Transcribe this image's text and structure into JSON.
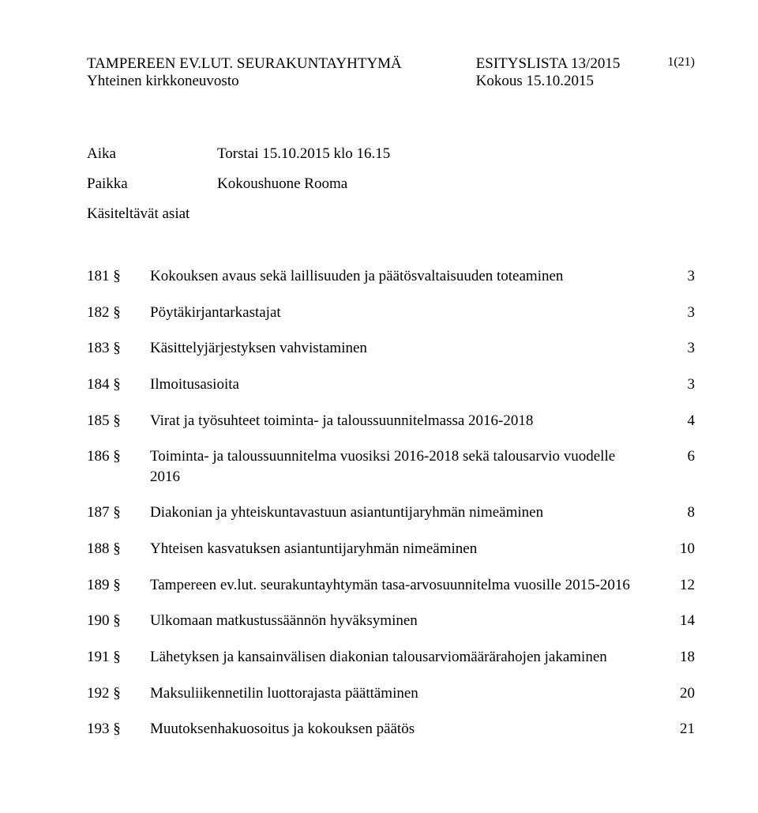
{
  "header": {
    "org_line1": "TAMPEREEN EV.LUT. SEURAKUNTAYHTYMÄ",
    "org_line2": "Yhteinen kirkkoneuvosto",
    "doc_type": "ESITYSLISTA 13/2015",
    "meeting": "Kokous 15.10.2015",
    "page_num": "1(21)"
  },
  "meta": {
    "time_label": "Aika",
    "time_value": "Torstai 15.10.2015 klo 16.15",
    "place_label": "Paikka",
    "place_value": "Kokoushuone Rooma",
    "subject_heading": "Käsiteltävät asiat"
  },
  "toc": [
    {
      "section": "181 §",
      "title": "Kokouksen avaus sekä laillisuuden ja päätösvaltaisuuden toteaminen",
      "page": "3"
    },
    {
      "section": "182 §",
      "title": "Pöytäkirjantarkastajat",
      "page": "3"
    },
    {
      "section": "183 §",
      "title": "Käsittelyjärjestyksen vahvistaminen",
      "page": "3"
    },
    {
      "section": "184 §",
      "title": "Ilmoitusasioita",
      "page": "3"
    },
    {
      "section": "185 §",
      "title": "Virat ja työsuhteet toiminta- ja taloussuunnitelmassa 2016-2018",
      "page": "4"
    },
    {
      "section": "186 §",
      "title": "Toiminta- ja taloussuunnitelma vuosiksi 2016-2018 sekä talousarvio vuodelle 2016",
      "page": "6"
    },
    {
      "section": "187 §",
      "title": "Diakonian ja yhteiskuntavastuun asiantuntijaryhmän nimeäminen",
      "page": "8"
    },
    {
      "section": "188 §",
      "title": "Yhteisen kasvatuksen asiantuntijaryhmän nimeäminen",
      "page": "10"
    },
    {
      "section": "189 §",
      "title": "Tampereen ev.lut. seurakuntayhtymän tasa-arvosuunnitelma vuosille 2015-2016",
      "page": "12"
    },
    {
      "section": "190 §",
      "title": "Ulkomaan matkustussäännön hyväksyminen",
      "page": "14"
    },
    {
      "section": "191 §",
      "title": "Lähetyksen ja kansainvälisen diakonian talousarviomäärärahojen jakaminen",
      "page": "18"
    },
    {
      "section": "192 §",
      "title": "Maksuliikennetilin luottorajasta päättäminen",
      "page": "20"
    },
    {
      "section": "193 §",
      "title": "Muutoksenhakuosoitus ja kokouksen päätös",
      "page": "21"
    }
  ]
}
